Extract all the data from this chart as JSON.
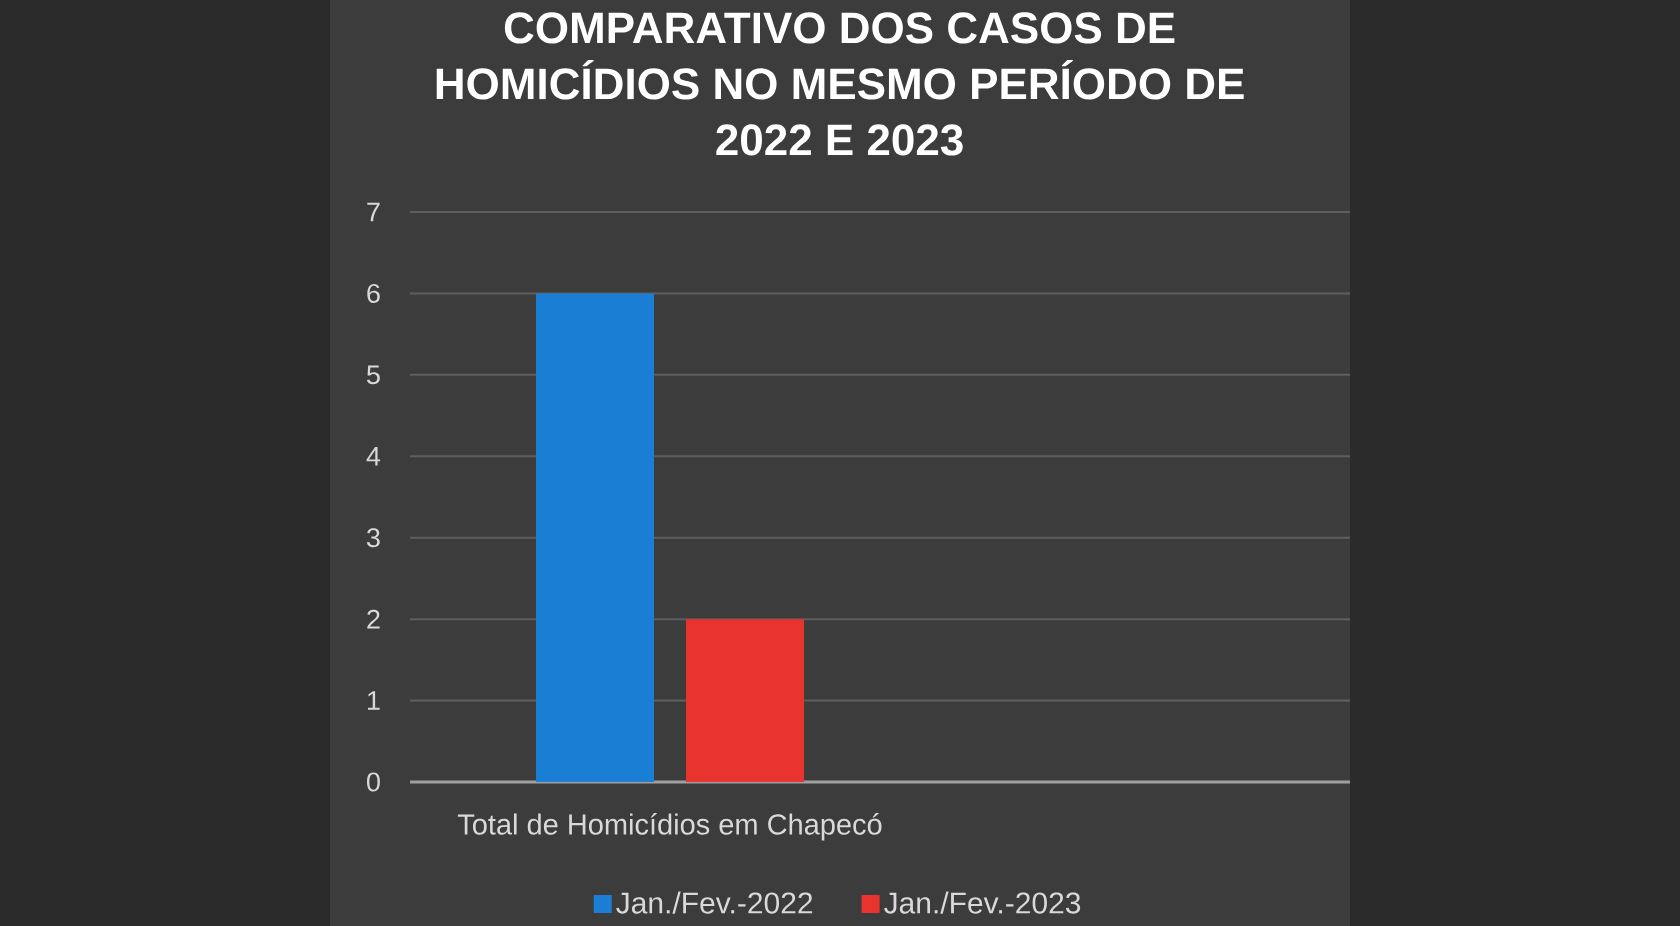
{
  "chart_data": {
    "type": "bar",
    "title": "COMPARATIVO DOS CASOS DE HOMICÍDIOS NO MESMO PERÍODO DE 2022 E 2023",
    "categories": [
      "Total de Homicídios em Chapecó"
    ],
    "series": [
      {
        "name": "Jan./Fev.-2022",
        "color": "#1a7fd4",
        "values": [
          6
        ]
      },
      {
        "name": "Jan./Fev.-2023",
        "color": "#e8332e",
        "values": [
          2
        ]
      }
    ],
    "ylim": [
      0,
      7
    ],
    "yticks": [
      0,
      1,
      2,
      3,
      4,
      5,
      6,
      7
    ],
    "grid": "y",
    "legend": "bottom"
  }
}
